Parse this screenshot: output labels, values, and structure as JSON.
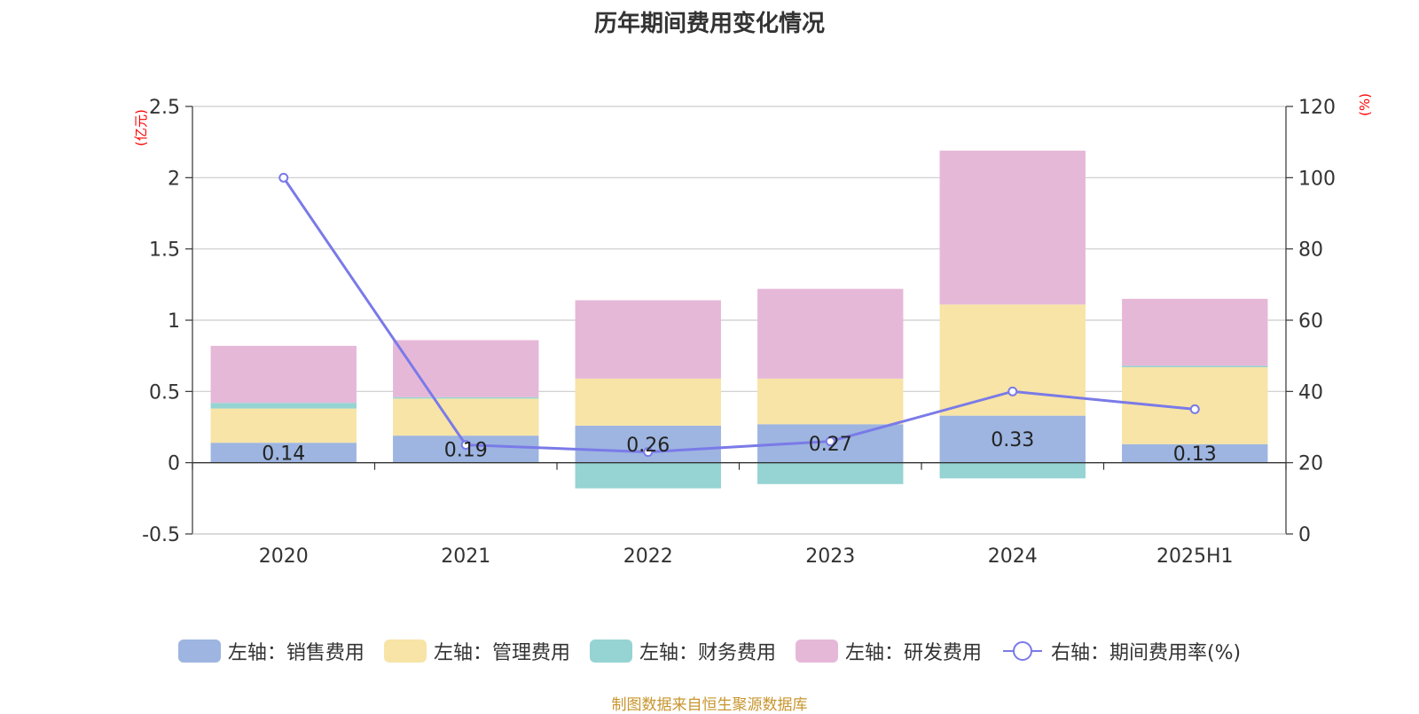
{
  "chart_data": {
    "type": "bar",
    "title": "历年期间费用变化情况",
    "categories": [
      "2020",
      "2021",
      "2022",
      "2023",
      "2024",
      "2025H1"
    ],
    "left_axis": {
      "unit": "(亿元)",
      "ylim": [
        -0.5,
        2.5
      ],
      "ticks": [
        "-0.5",
        "0",
        "0.5",
        "1",
        "1.5",
        "2",
        "2.5"
      ]
    },
    "right_axis": {
      "unit": "(%)",
      "ylim": [
        0,
        120
      ],
      "ticks": [
        "0",
        "20",
        "40",
        "60",
        "80",
        "100",
        "120"
      ]
    },
    "stacked": true,
    "series": [
      {
        "name": "左轴：销售费用",
        "type": "bar",
        "axis": "left",
        "color": "#9db5e0",
        "values": [
          0.14,
          0.19,
          0.26,
          0.27,
          0.33,
          0.13
        ],
        "data_labels": [
          "0.14",
          "0.19",
          "0.26",
          "0.27",
          "0.33",
          "0.13"
        ]
      },
      {
        "name": "左轴：管理费用",
        "type": "bar",
        "axis": "left",
        "color": "#f7e4a6",
        "values": [
          0.24,
          0.26,
          0.33,
          0.32,
          0.78,
          0.54
        ]
      },
      {
        "name": "左轴：财务费用",
        "type": "bar",
        "axis": "left",
        "color": "#96d3d3",
        "values": [
          0.04,
          0.01,
          -0.18,
          -0.15,
          -0.11,
          0.01
        ]
      },
      {
        "name": "左轴：研发费用",
        "type": "bar",
        "axis": "left",
        "color": "#e6b8d8",
        "values": [
          0.4,
          0.4,
          0.55,
          0.63,
          1.08,
          0.47
        ]
      },
      {
        "name": "右轴：期间费用率(%)",
        "type": "line",
        "axis": "right",
        "color": "#7a7ae8",
        "values": [
          100,
          25,
          23,
          26,
          40,
          35
        ]
      }
    ],
    "grid": true,
    "legend_position": "bottom"
  },
  "source_note": "制图数据来自恒生聚源数据库"
}
